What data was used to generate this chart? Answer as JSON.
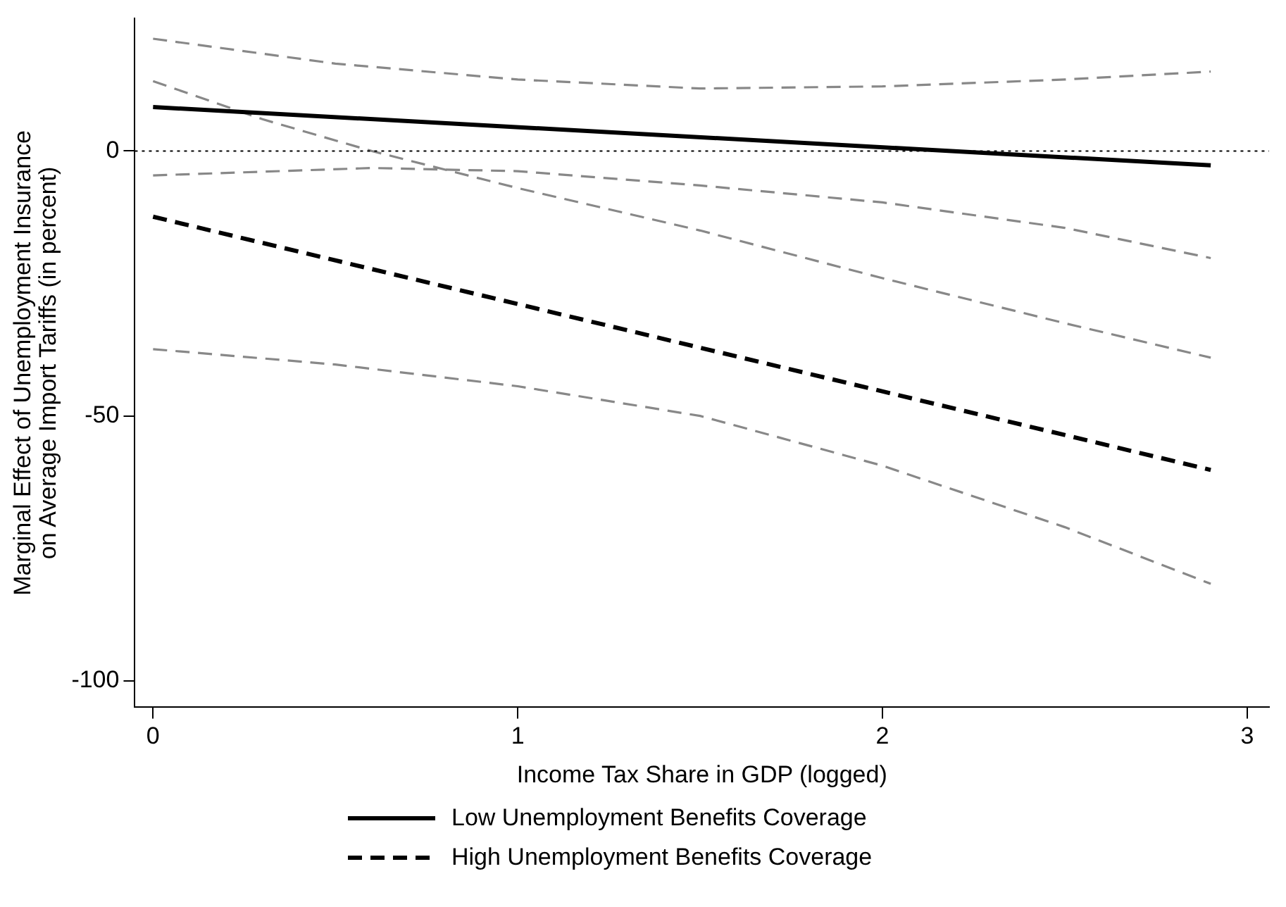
{
  "chart_data": {
    "type": "line",
    "xlabel": "Income Tax Share in GDP (logged)",
    "ylabel": "Marginal Effect of Unemployment Insurance\non Average Import Tariffs (in percent)",
    "xlim": [
      -0.05,
      3.06
    ],
    "xticks": [
      0,
      1,
      2,
      3
    ],
    "ylim": [
      -105,
      25
    ],
    "yticks": [
      -100,
      -50,
      0
    ],
    "grid": false,
    "legend": "bottom",
    "marker": "none",
    "ref_lines": [
      {
        "axis": "y",
        "value": 0,
        "color": "#000000",
        "line_style": "dotted"
      }
    ],
    "series": [
      {
        "name": "Low Unemployment Benefits Coverage",
        "color": "#000000",
        "line_style": "solid",
        "x": [
          0,
          2.9
        ],
        "values": [
          8.3,
          -2.7
        ]
      },
      {
        "name": "High Unemployment Benefits Coverage",
        "color": "#000000",
        "line_style": "dashed",
        "x": [
          0,
          2.9
        ],
        "values": [
          -12.4,
          -60.2
        ]
      },
      {
        "color": "#888888",
        "line_style": "dashed",
        "x": [
          0,
          0.5,
          1,
          1.5,
          2,
          2.5,
          2.9
        ],
        "values": [
          21.2,
          16.5,
          13.5,
          11.8,
          12.2,
          13.5,
          15
        ]
      },
      {
        "color": "#888888",
        "line_style": "dashed",
        "x": [
          0,
          0.6,
          1,
          1.5,
          2,
          2.5,
          2.9
        ],
        "values": [
          -4.6,
          -3.2,
          -3.8,
          -6.5,
          -9.7,
          -14.5,
          -20.2
        ]
      },
      {
        "color": "#888888",
        "line_style": "dashed",
        "x": [
          0,
          0.3,
          0.6,
          1,
          1.5,
          2,
          2.5,
          2.9
        ],
        "values": [
          13.2,
          6,
          0,
          -7,
          -15,
          -24,
          -32.5,
          -39
        ]
      },
      {
        "color": "#888888",
        "line_style": "dashed",
        "x": [
          0,
          0.5,
          1,
          1.5,
          2,
          2.5,
          2.9
        ],
        "values": [
          -37.4,
          -40.3,
          -44.4,
          -50,
          -59.4,
          -71,
          -81.7
        ]
      }
    ]
  }
}
